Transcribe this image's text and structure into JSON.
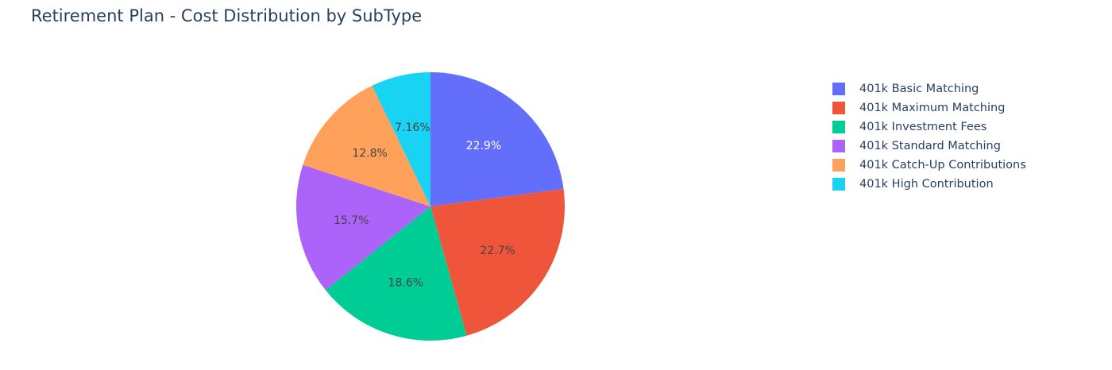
{
  "chart_data": {
    "type": "pie",
    "title": "Retirement Plan - Cost Distribution by SubType",
    "slices": [
      {
        "label": "401k Basic Matching",
        "percent": 22.9,
        "display": "22.9%",
        "color": "#636efa",
        "text_color": "#ffffff"
      },
      {
        "label": "401k Maximum Matching",
        "percent": 22.7,
        "display": "22.7%",
        "color": "#ef553b",
        "text_color": "#444444"
      },
      {
        "label": "401k Investment Fees",
        "percent": 18.6,
        "display": "18.6%",
        "color": "#00cc96",
        "text_color": "#444444"
      },
      {
        "label": "401k Standard Matching",
        "percent": 15.7,
        "display": "15.7%",
        "color": "#ab63fa",
        "text_color": "#444444"
      },
      {
        "label": "401k Catch-Up Contributions",
        "percent": 12.8,
        "display": "12.8%",
        "color": "#ffa15a",
        "text_color": "#444444"
      },
      {
        "label": "401k High Contribution",
        "percent": 7.16,
        "display": "7.16%",
        "color": "#19d3f3",
        "text_color": "#444444"
      }
    ],
    "direction": "clockwise",
    "legend_position": "top-right"
  }
}
